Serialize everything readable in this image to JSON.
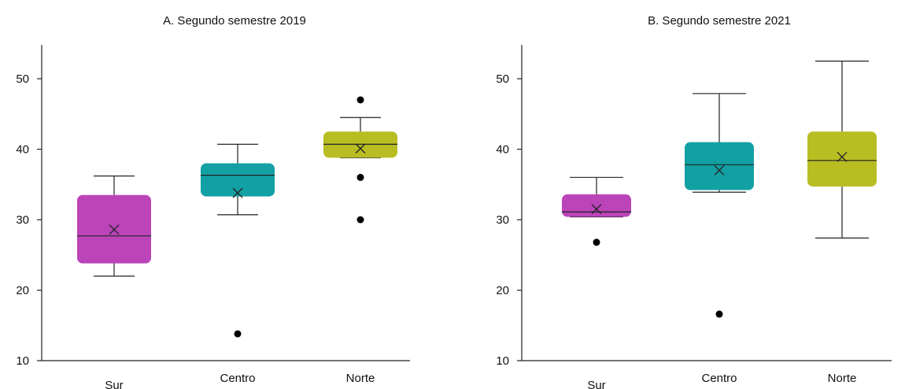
{
  "chart_data": [
    {
      "type": "box",
      "title": "A. Segundo semestre 2019",
      "categories": [
        "Sur",
        "Centro",
        "Norte"
      ],
      "ylim": [
        10,
        55
      ],
      "yticks": [
        "10",
        "20",
        "30",
        "40",
        "50"
      ],
      "colors": [
        "#bb44b9",
        "#13a0a4",
        "#b8bd22"
      ],
      "boxes": [
        {
          "category": "Sur",
          "whisker_low": 22.0,
          "q1": 23.8,
          "median": 27.7,
          "mean": 28.6,
          "q3": 33.5,
          "whisker_high": 36.2,
          "outliers": []
        },
        {
          "category": "Centro",
          "whisker_low": 30.7,
          "q1": 33.3,
          "median": 36.3,
          "mean": 33.8,
          "q3": 38.0,
          "whisker_high": 40.7,
          "outliers": [
            13.8
          ]
        },
        {
          "category": "Norte",
          "whisker_low": 38.8,
          "q1": 38.8,
          "median": 40.7,
          "mean": 40.1,
          "q3": 42.5,
          "whisker_high": 44.5,
          "outliers": [
            47.0,
            36.0,
            30.0
          ]
        }
      ]
    },
    {
      "type": "box",
      "title": "B. Segundo semestre 2021",
      "categories": [
        "Sur",
        "Centro",
        "Norte"
      ],
      "ylim": [
        10,
        55
      ],
      "yticks": [
        "10",
        "20",
        "30",
        "40",
        "50"
      ],
      "colors": [
        "#bb44b9",
        "#13a0a4",
        "#b8bd22"
      ],
      "boxes": [
        {
          "category": "Sur",
          "whisker_low": 30.4,
          "q1": 30.4,
          "median": 31.1,
          "mean": 31.5,
          "q3": 33.6,
          "whisker_high": 36.0,
          "outliers": [
            26.8
          ]
        },
        {
          "category": "Centro",
          "whisker_low": 33.9,
          "q1": 34.2,
          "median": 37.8,
          "mean": 37.0,
          "q3": 41.0,
          "whisker_high": 47.9,
          "outliers": [
            16.6
          ]
        },
        {
          "category": "Norte",
          "whisker_low": 27.4,
          "q1": 34.7,
          "median": 38.4,
          "mean": 38.9,
          "q3": 42.5,
          "whisker_high": 52.5,
          "outliers": []
        }
      ]
    }
  ]
}
